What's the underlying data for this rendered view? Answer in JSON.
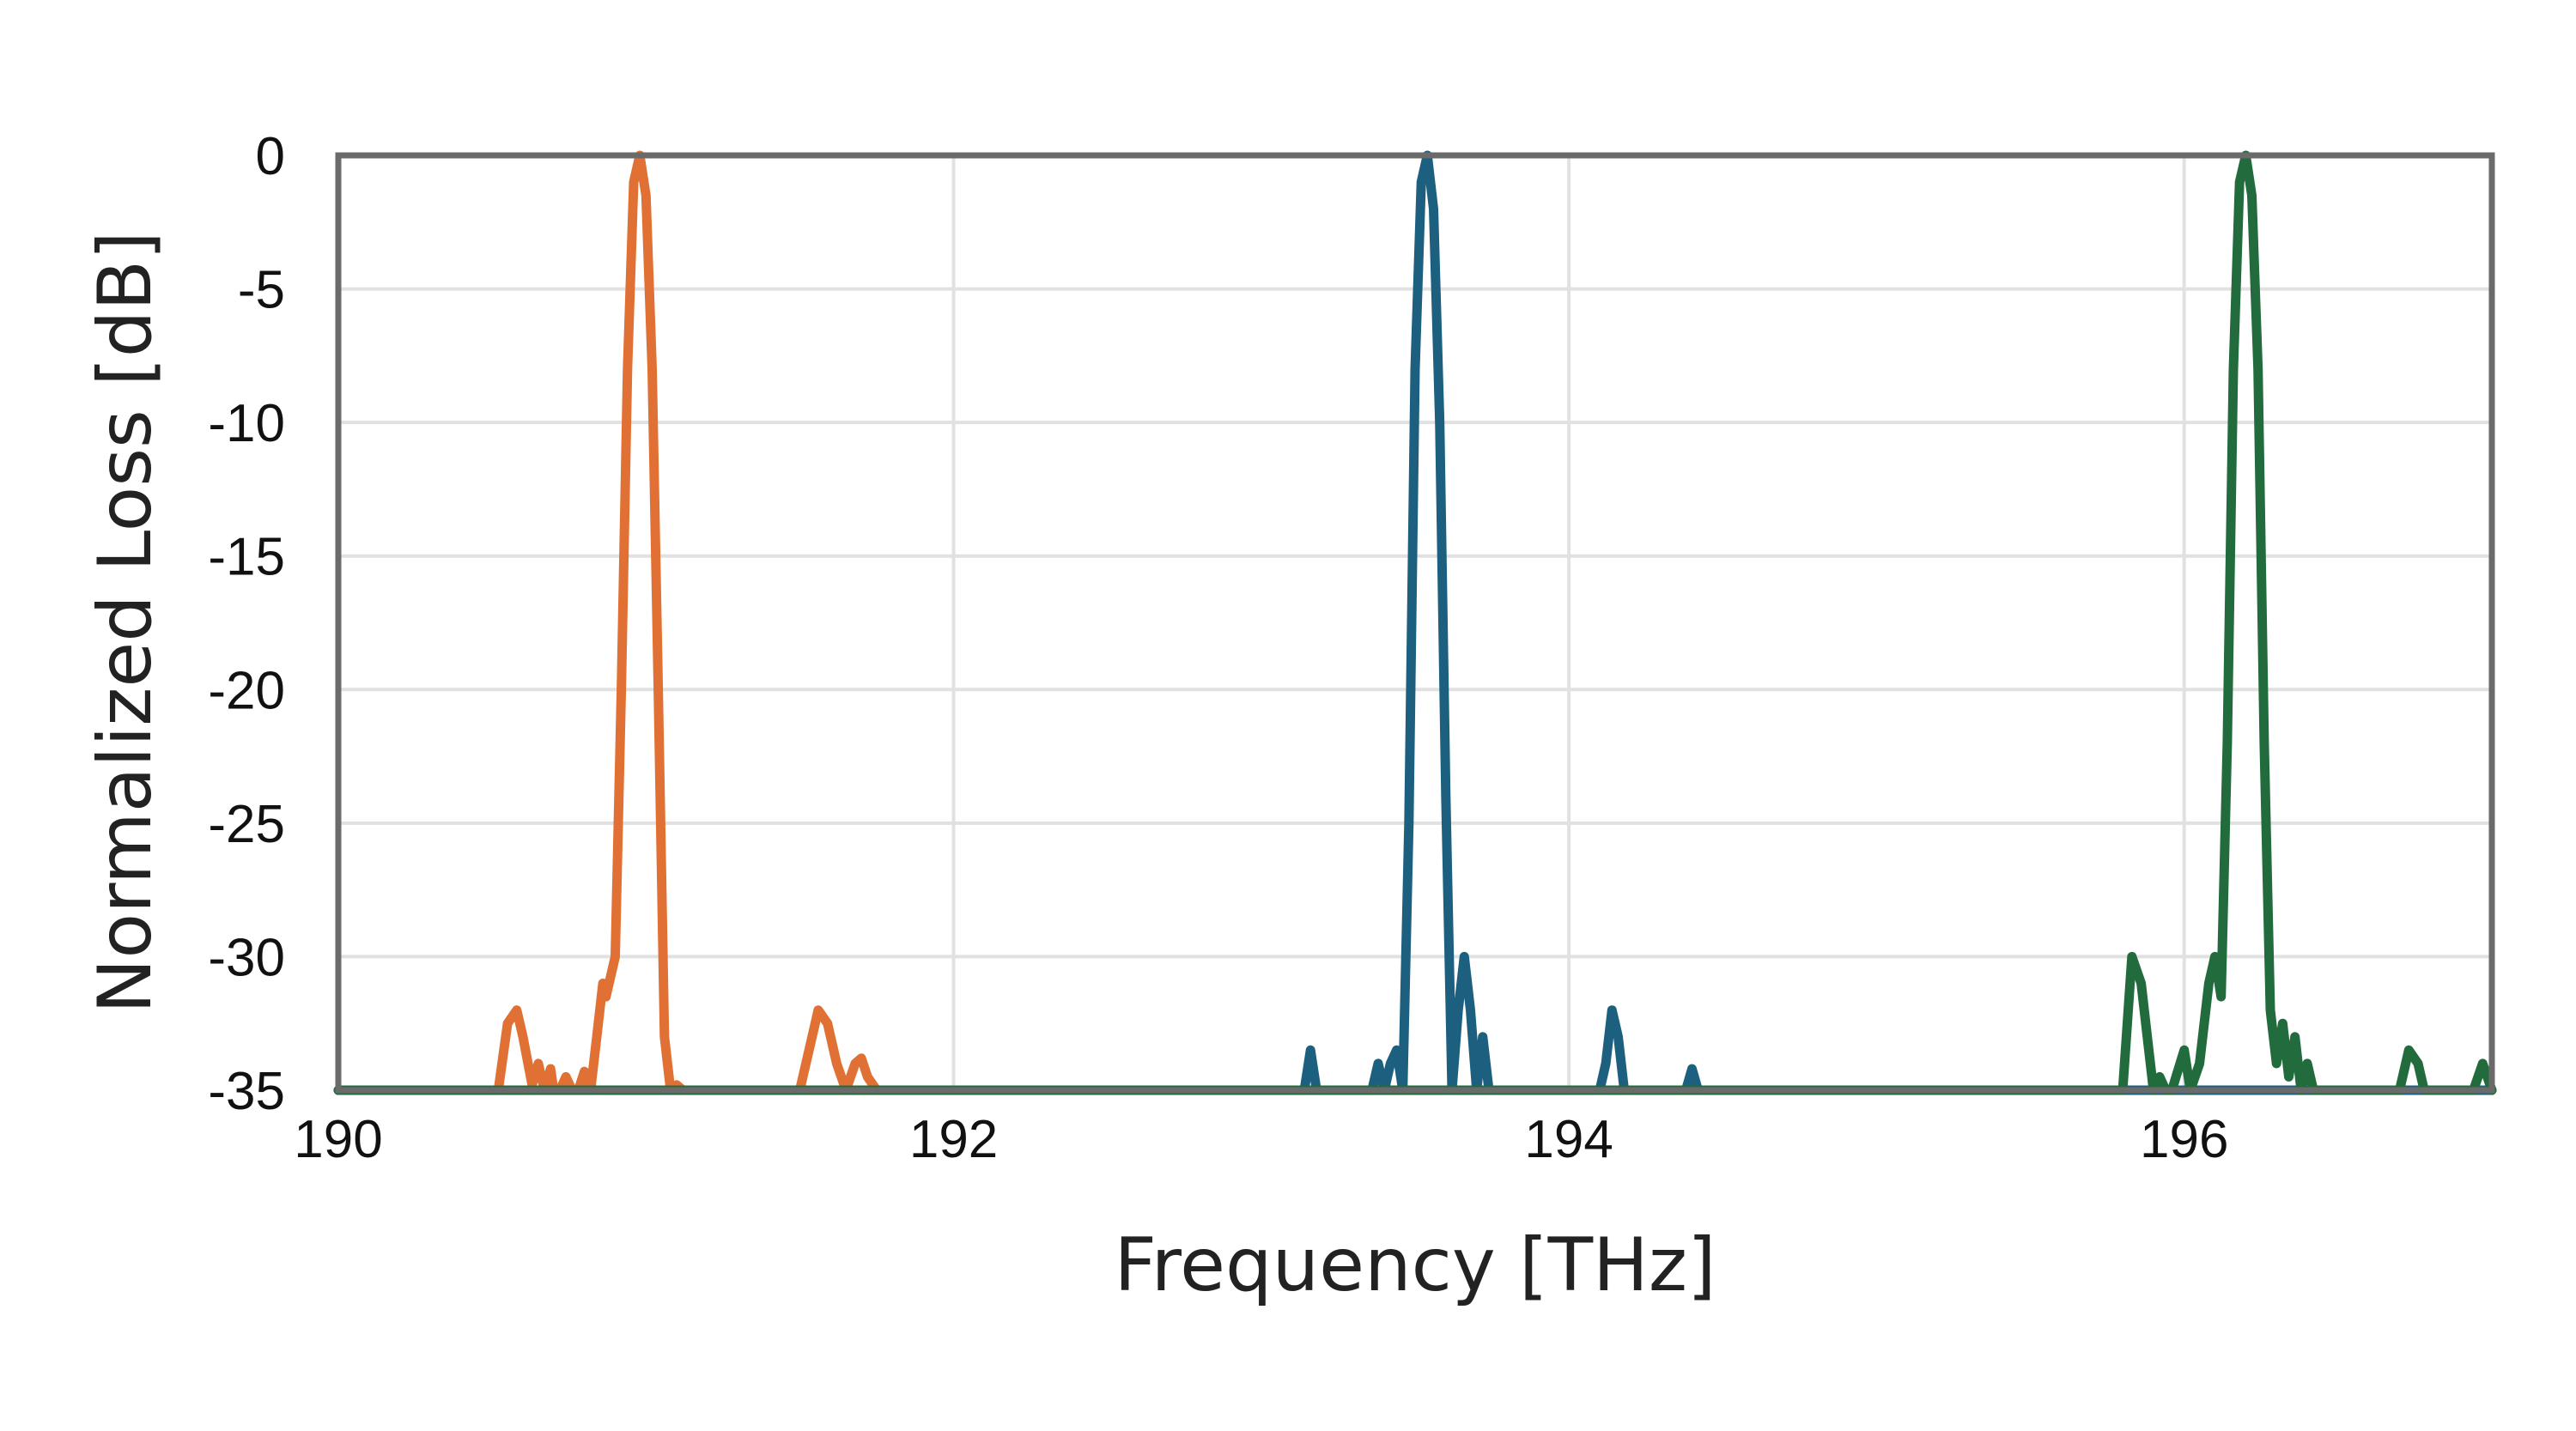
{
  "chart_data": {
    "type": "line",
    "title": "",
    "xlabel": "Frequency [THz]",
    "ylabel": "Normalized Loss [dB]",
    "xlim": [
      190,
      197
    ],
    "ylim": [
      -35,
      0
    ],
    "xticks": [
      190,
      192,
      194,
      196
    ],
    "xtick_labels": [
      "190",
      "192",
      "194",
      "196"
    ],
    "yticks": [
      0,
      -5,
      -10,
      -15,
      -20,
      -25,
      -30,
      -35
    ],
    "ytick_labels": [
      "0",
      "-5",
      "-10",
      "-15",
      "-20",
      "-25",
      "-30",
      "-35"
    ],
    "grid": true,
    "legend": "none",
    "series": [
      {
        "color": "#e07034",
        "x": [
          190.0,
          190.52,
          190.55,
          190.58,
          190.6,
          190.63,
          190.65,
          190.67,
          190.69,
          190.7,
          190.72,
          190.74,
          190.76,
          190.78,
          190.8,
          190.82,
          190.84,
          190.86,
          190.87,
          190.88,
          190.9,
          190.92,
          190.94,
          190.96,
          190.98,
          191.0,
          191.02,
          191.04,
          191.06,
          191.08,
          191.1,
          191.12,
          191.5,
          191.53,
          191.56,
          191.59,
          191.62,
          191.65,
          191.68,
          191.7,
          191.72,
          191.75,
          197.0
        ],
        "y": [
          -35,
          -35,
          -32.5,
          -32,
          -33,
          -34.8,
          -34,
          -35,
          -34.2,
          -35,
          -35,
          -34.5,
          -35,
          -35,
          -34.3,
          -35,
          -33,
          -31,
          -31.5,
          -31,
          -30,
          -20,
          -8,
          -1,
          0,
          -1.5,
          -8,
          -20,
          -33,
          -35,
          -34.8,
          -35,
          -35,
          -33.5,
          -32,
          -32.5,
          -34,
          -35,
          -34,
          -33.8,
          -34.5,
          -35,
          -35
        ]
      },
      {
        "color": "#1c5f7f",
        "x": [
          190.0,
          193.14,
          193.16,
          193.18,
          193.2,
          193.36,
          193.38,
          193.4,
          193.42,
          193.44,
          193.46,
          193.48,
          193.5,
          193.52,
          193.54,
          193.56,
          193.58,
          193.6,
          193.62,
          193.64,
          193.66,
          193.68,
          193.7,
          193.72,
          193.74,
          193.76,
          194.1,
          194.12,
          194.14,
          194.16,
          194.18,
          194.2,
          194.38,
          194.4,
          194.42,
          197.0
        ],
        "y": [
          -35,
          -35,
          -33.5,
          -35,
          -35,
          -35,
          -34,
          -35,
          -34,
          -33.5,
          -35,
          -25,
          -8,
          -1,
          0,
          -2,
          -10,
          -24,
          -35,
          -32,
          -30,
          -32,
          -35,
          -33,
          -35,
          -35,
          -35,
          -34,
          -32,
          -33,
          -35,
          -35,
          -35,
          -34.2,
          -35,
          -35
        ]
      },
      {
        "color": "#226b3c",
        "x": [
          190.0,
          195.8,
          195.83,
          195.86,
          195.88,
          195.9,
          195.92,
          195.94,
          195.96,
          196.0,
          196.02,
          196.05,
          196.08,
          196.1,
          196.12,
          196.14,
          196.16,
          196.18,
          196.2,
          196.22,
          196.24,
          196.26,
          196.28,
          196.3,
          196.32,
          196.34,
          196.36,
          196.38,
          196.4,
          196.42,
          196.44,
          196.7,
          196.73,
          196.76,
          196.78,
          196.8,
          196.94,
          196.97,
          197.0
        ],
        "y": [
          -35,
          -35,
          -30,
          -31,
          -33,
          -35,
          -34.5,
          -35,
          -35,
          -33.5,
          -35,
          -34,
          -31,
          -30,
          -31.5,
          -22,
          -8,
          -1,
          0,
          -1.5,
          -8,
          -22,
          -32,
          -34,
          -32.5,
          -34.5,
          -33,
          -35,
          -34,
          -35,
          -35,
          -35,
          -33.5,
          -34,
          -35,
          -35,
          -35,
          -34,
          -35
        ]
      }
    ]
  }
}
